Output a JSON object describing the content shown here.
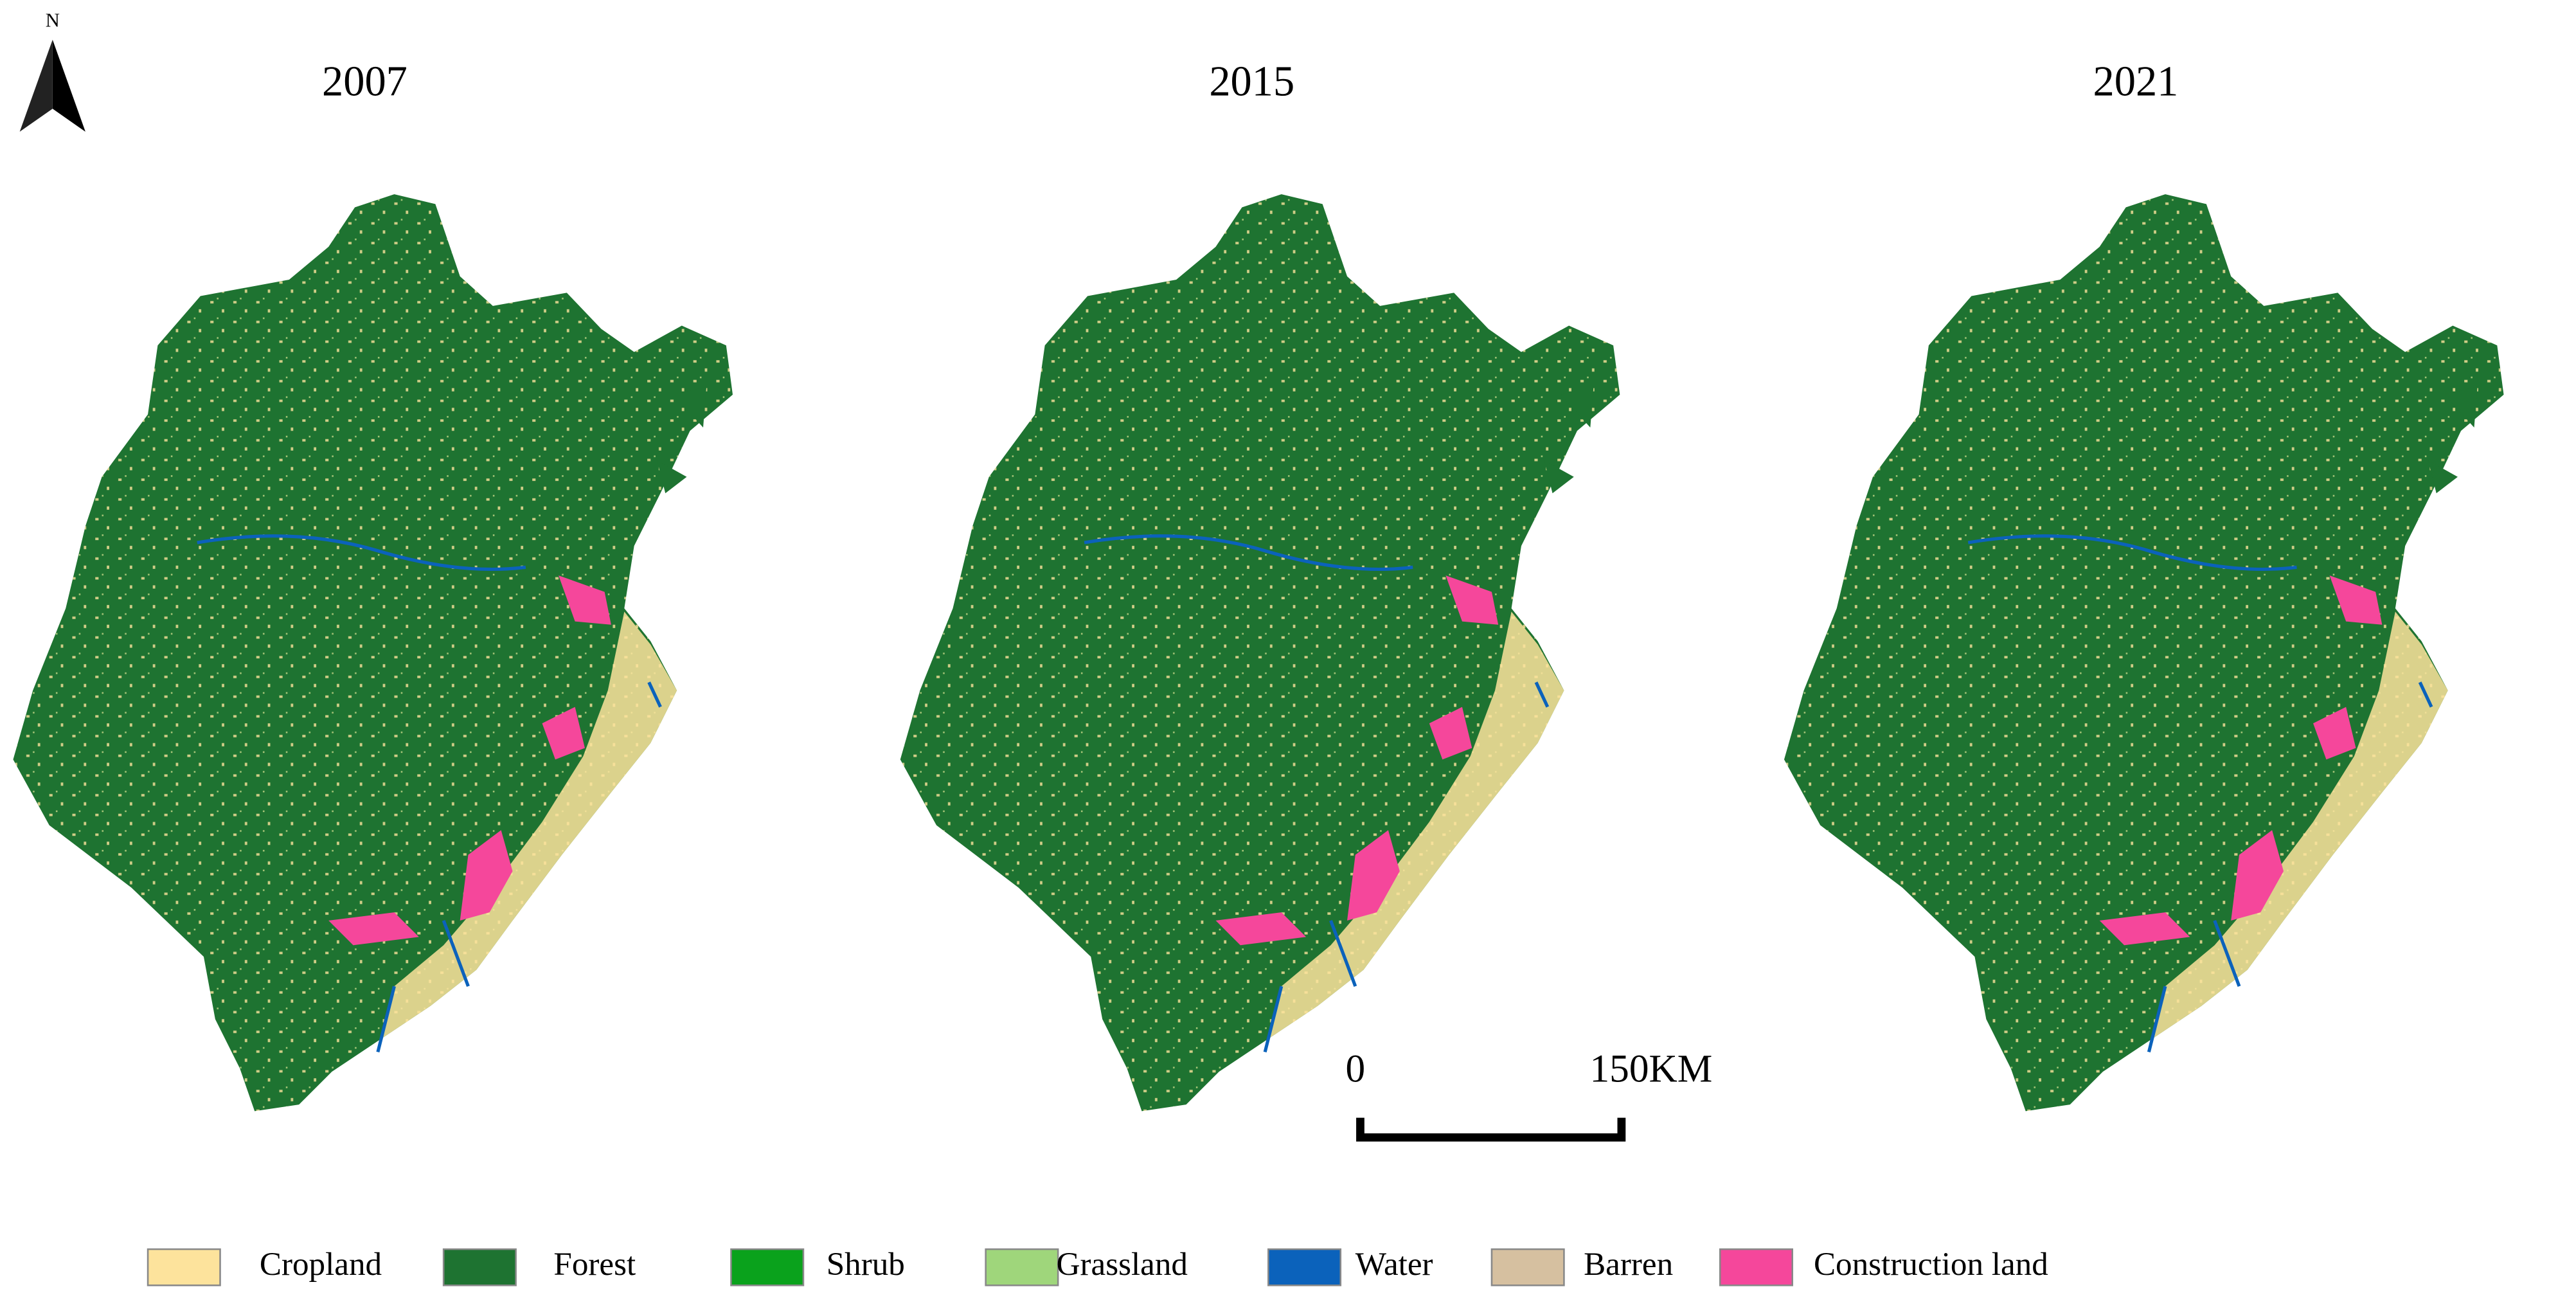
{
  "north_label": "N",
  "panels": [
    {
      "title": "2007"
    },
    {
      "title": "2015"
    },
    {
      "title": "2021"
    }
  ],
  "scale_bar": {
    "start_label": "0",
    "end_label": "150KM"
  },
  "legend": [
    {
      "label": "Cropland",
      "color": "#fde39c"
    },
    {
      "label": "Forest",
      "color": "#1e7331"
    },
    {
      "label": "Shrub",
      "color": "#0aa21c"
    },
    {
      "label": "Grassland",
      "color": "#9fd67b"
    },
    {
      "label": "Water",
      "color": "#0b62bb"
    },
    {
      "label": "Barren",
      "color": "#d6c0a0"
    },
    {
      "label": "Construction land",
      "color": "#f5479b"
    }
  ]
}
